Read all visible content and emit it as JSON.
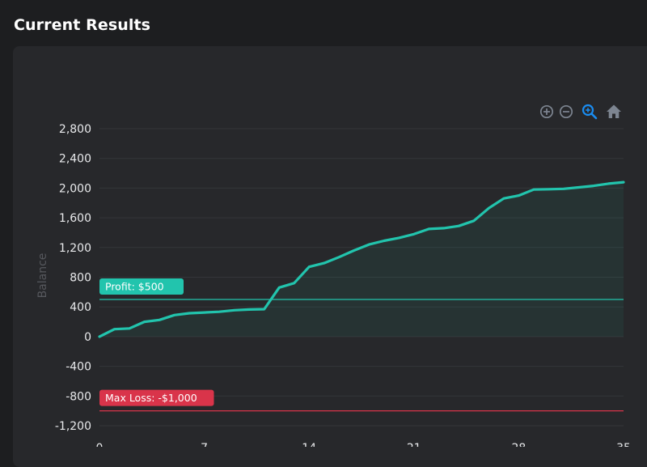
{
  "page": {
    "heading": "Current Results"
  },
  "toolbar": {
    "icons": [
      "zoom-in-icon",
      "zoom-out-icon",
      "search-zoom-icon",
      "home-icon"
    ]
  },
  "colors": {
    "line": "#22c4ad",
    "profit": "#22c4ad",
    "loss": "#d9344a",
    "zoom_active": "#1a8cf0",
    "toolbar_icon": "#7d8591"
  },
  "chart_data": {
    "type": "area",
    "ylabel": "Balance",
    "ylim": [
      -1200,
      2800
    ],
    "yticks": [
      2800,
      2400,
      2000,
      1600,
      1200,
      800,
      400,
      0,
      -400,
      -800,
      -1200
    ],
    "ytick_labels": [
      "2,800",
      "2,400",
      "2,000",
      "1,600",
      "1,200",
      "800",
      "400",
      "0",
      "-400",
      "-800",
      "-1,200"
    ],
    "xticks": [
      0,
      7,
      14,
      21,
      28,
      35
    ],
    "xlim": [
      0,
      35
    ],
    "grid": true,
    "series": [
      {
        "x": [
          0,
          1,
          2,
          3,
          4,
          5,
          6,
          7,
          8,
          9,
          10,
          11,
          12,
          13,
          14,
          15,
          16,
          17,
          18,
          19,
          20,
          21,
          22,
          23,
          24,
          25,
          26,
          27,
          28,
          29,
          30,
          31,
          32,
          33,
          34,
          35
        ],
        "values": [
          0,
          100,
          110,
          200,
          225,
          290,
          315,
          325,
          335,
          355,
          365,
          370,
          660,
          720,
          940,
          990,
          1070,
          1160,
          1240,
          1290,
          1330,
          1380,
          1450,
          1460,
          1490,
          1560,
          1730,
          1860,
          1900,
          1980,
          1985,
          1990,
          2010,
          2030,
          2060,
          2080
        ]
      }
    ],
    "annotations": [
      {
        "label": "Profit: $500",
        "y": 500
      },
      {
        "label": "Max Loss: -$1,000",
        "y": -1000
      }
    ]
  }
}
